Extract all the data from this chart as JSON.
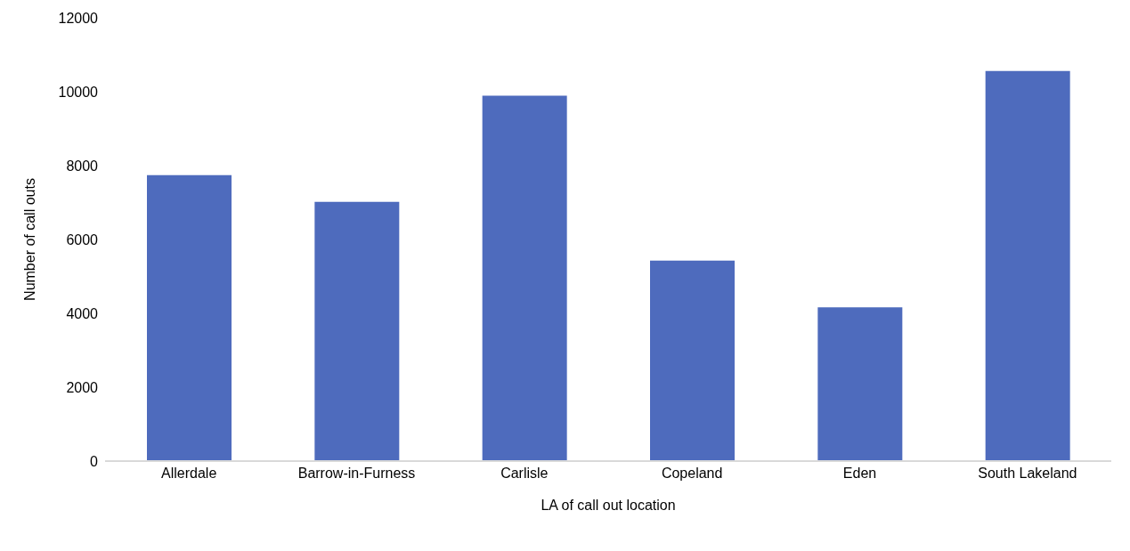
{
  "chart_data": {
    "type": "bar",
    "xlabel": "LA of call out location",
    "ylabel": "Number of call outs",
    "categories": [
      "Allerdale",
      "Barrow-in-Furness",
      "Carlisle",
      "Copeland",
      "Eden",
      "South Lakeland"
    ],
    "values": [
      7740,
      7020,
      9890,
      5430,
      4160,
      10560
    ],
    "color": "#4e6bbd",
    "ylim": [
      0,
      12000
    ],
    "yticks": [
      0,
      2000,
      4000,
      6000,
      8000,
      10000,
      12000
    ],
    "grid": false,
    "legend": false
  }
}
